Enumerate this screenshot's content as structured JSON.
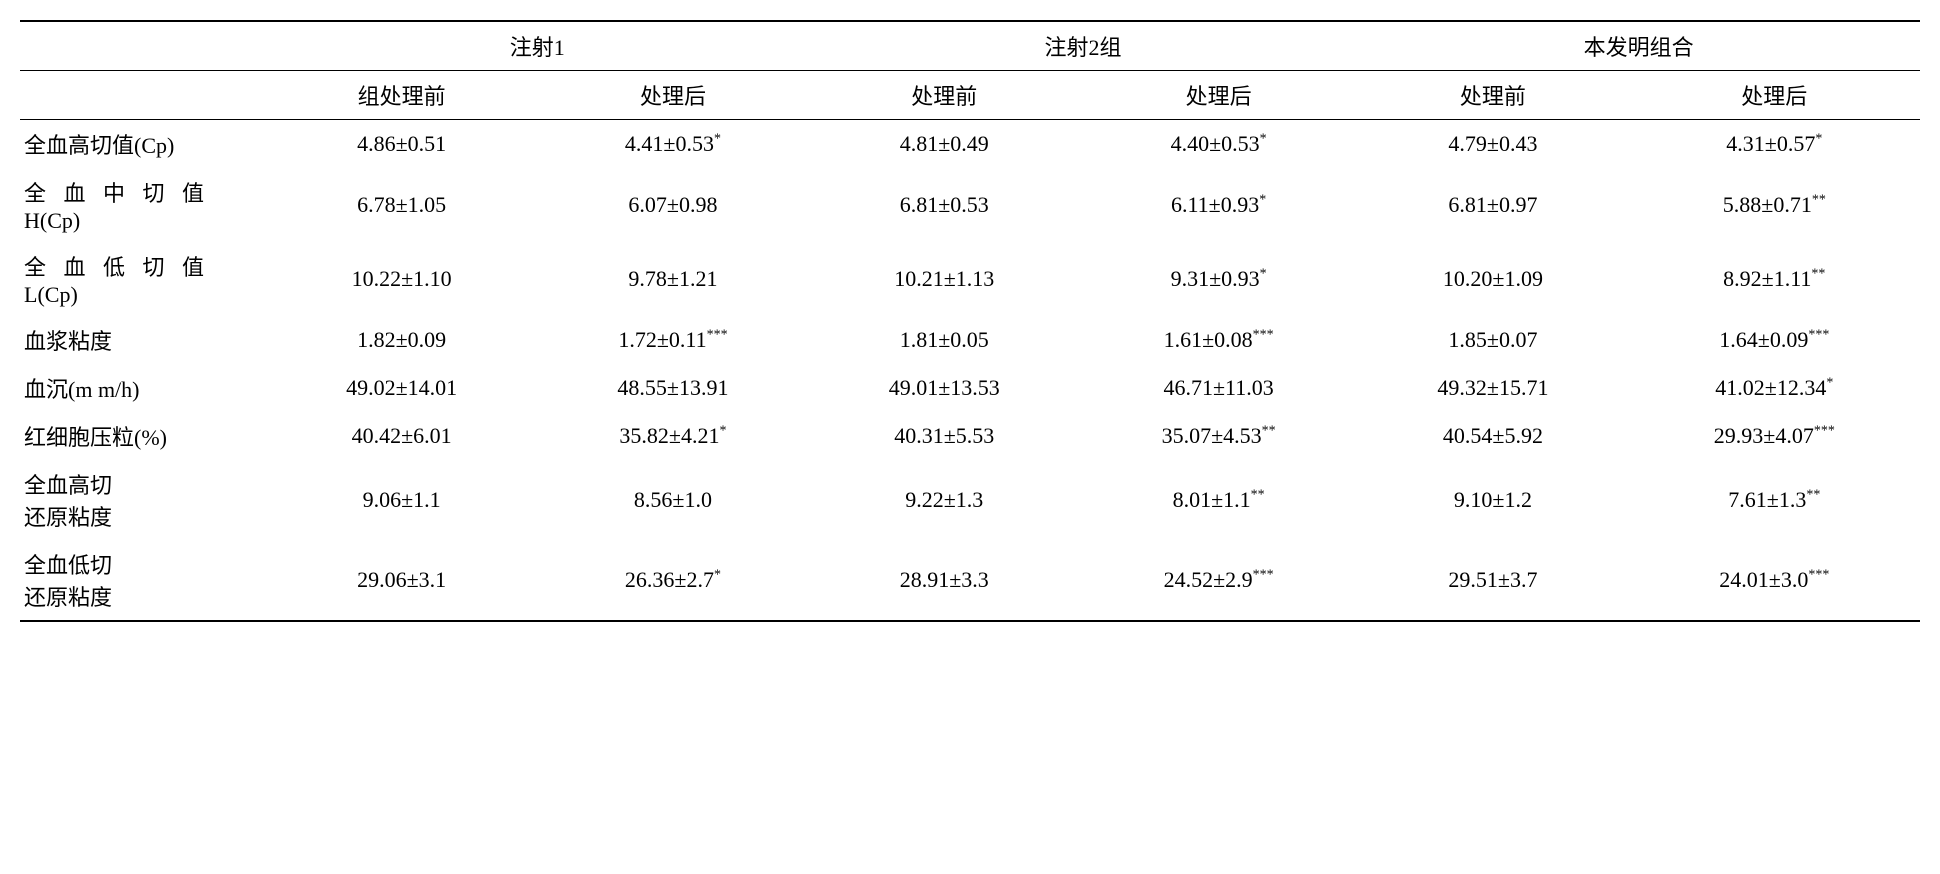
{
  "table": {
    "group_headers": [
      "注射1",
      "注射2组",
      "本发明组合"
    ],
    "sub_headers": [
      "组处理前",
      "处理后",
      "处理前",
      "处理后",
      "处理前",
      "处理后"
    ],
    "rows": [
      {
        "label": "全血高切值(Cp)",
        "spaced": false,
        "cells": [
          "4.86±0.51",
          "4.41±0.53*",
          "4.81±0.49",
          "4.40±0.53*",
          "4.79±0.43",
          "4.31±0.57*"
        ]
      },
      {
        "label": "全血中切值H(Cp)",
        "spaced": true,
        "cells": [
          "6.78±1.05",
          "6.07±0.98",
          "6.81±0.53",
          "6.11±0.93*",
          "6.81±0.97",
          "5.88±0.71**"
        ]
      },
      {
        "label": "全血低切值L(Cp)",
        "spaced": true,
        "cells": [
          "10.22±1.10",
          "9.78±1.21",
          "10.21±1.13",
          "9.31±0.93*",
          "10.20±1.09",
          "8.92±1.11**"
        ]
      },
      {
        "label": "血浆粘度",
        "spaced": false,
        "cells": [
          "1.82±0.09",
          "1.72±0.11***",
          "1.81±0.05",
          "1.61±0.08***",
          "1.85±0.07",
          "1.64±0.09***"
        ]
      },
      {
        "label": "血沉(m m/h)",
        "spaced": false,
        "cells": [
          "49.02±14.01",
          "48.55±13.91",
          "49.01±13.53",
          "46.71±11.03",
          "49.32±15.71",
          "41.02±12.34*"
        ]
      },
      {
        "label": "红细胞压粒(%)",
        "spaced": false,
        "cells": [
          "40.42±6.01",
          "35.82±4.21*",
          "40.31±5.53",
          "35.07±4.53**",
          "40.54±5.92",
          "29.93±4.07***"
        ]
      },
      {
        "label": "全血高切\n还原粘度",
        "spaced": false,
        "cells": [
          "9.06±1.1",
          "8.56±1.0",
          "9.22±1.3",
          "8.01±1.1**",
          "9.10±1.2",
          "7.61±1.3**"
        ]
      },
      {
        "label": "全血低切\n还原粘度",
        "spaced": false,
        "cells": [
          "29.06±3.1",
          "26.36±2.7*",
          "28.91±3.3",
          "24.52±2.9***",
          "29.51±3.7",
          "24.01±3.0***"
        ]
      }
    ]
  }
}
